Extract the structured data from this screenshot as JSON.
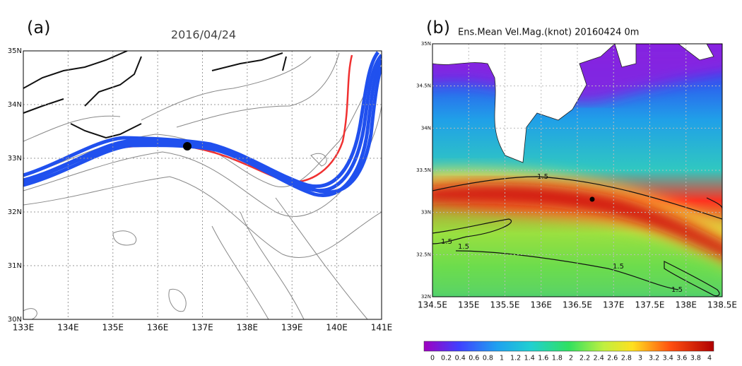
{
  "panels": [
    {
      "label": "(a)",
      "title": "2016/04/24",
      "xticks": [
        "133E",
        "134E",
        "135E",
        "136E",
        "137E",
        "138E",
        "139E",
        "140E",
        "141E"
      ],
      "yticks": [
        "35N",
        "34N",
        "33N",
        "32N",
        "31N",
        "30N"
      ]
    },
    {
      "label": "(b)",
      "title": "Ens.Mean Vel.Mag.(knot)  20160424  0m",
      "xticks": [
        "134.5E",
        "135E",
        "135.5E",
        "136E",
        "136.5E",
        "137E",
        "137.5E",
        "138E",
        "138.5E"
      ],
      "yticks": [
        "35N",
        "34.5N",
        "34N",
        "33.5N",
        "33N",
        "32.5N",
        "32N"
      ],
      "contour_labels": [
        "1.5",
        "1.5",
        "1.5",
        "1.5",
        "1.5"
      ],
      "colorbar_labels": [
        "0",
        "0.2",
        "0.4",
        "0.6",
        "0.8",
        "1",
        "1.2",
        "1.4",
        "1.6",
        "1.8",
        "2",
        "2.2",
        "2.4",
        "2.6",
        "2.8",
        "3",
        "3.2",
        "3.4",
        "3.6",
        "3.8",
        "4"
      ]
    }
  ]
}
